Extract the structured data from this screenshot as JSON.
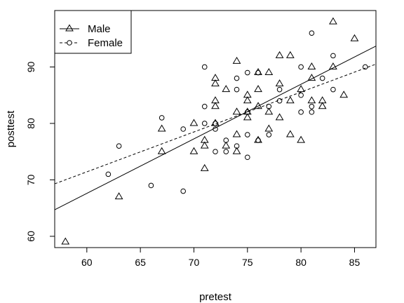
{
  "chart_data": {
    "type": "scatter",
    "xlabel": "pretest",
    "ylabel": "posttest",
    "xlim": [
      57,
      87
    ],
    "ylim": [
      58,
      100
    ],
    "x_ticks": [
      60,
      65,
      70,
      75,
      80,
      85
    ],
    "y_ticks": [
      60,
      70,
      80,
      90
    ],
    "grid": false,
    "legend_position": "top-left",
    "series": [
      {
        "name": "Male",
        "marker": "triangle",
        "line_style": "solid",
        "fit_line": {
          "x": [
            57,
            87
          ],
          "y": [
            64.7,
            93.7
          ]
        },
        "points": [
          [
            58,
            59
          ],
          [
            63,
            67
          ],
          [
            67,
            75
          ],
          [
            67,
            79
          ],
          [
            70,
            75
          ],
          [
            70,
            80
          ],
          [
            71,
            72
          ],
          [
            71,
            76
          ],
          [
            71,
            77
          ],
          [
            72,
            80
          ],
          [
            72,
            83
          ],
          [
            72,
            84
          ],
          [
            72,
            87
          ],
          [
            72,
            88
          ],
          [
            73,
            76
          ],
          [
            73,
            86
          ],
          [
            74,
            75
          ],
          [
            74,
            78
          ],
          [
            74,
            82
          ],
          [
            74,
            91
          ],
          [
            75,
            81
          ],
          [
            75,
            82
          ],
          [
            75,
            84
          ],
          [
            75,
            85
          ],
          [
            76,
            77
          ],
          [
            76,
            83
          ],
          [
            76,
            86
          ],
          [
            76,
            89
          ],
          [
            77,
            79
          ],
          [
            77,
            82
          ],
          [
            77,
            89
          ],
          [
            78,
            81
          ],
          [
            78,
            87
          ],
          [
            78,
            92
          ],
          [
            79,
            78
          ],
          [
            79,
            84
          ],
          [
            79,
            92
          ],
          [
            80,
            77
          ],
          [
            80,
            86
          ],
          [
            81,
            84
          ],
          [
            81,
            88
          ],
          [
            81,
            90
          ],
          [
            82,
            83
          ],
          [
            82,
            84
          ],
          [
            83,
            90
          ],
          [
            83,
            98
          ],
          [
            84,
            85
          ],
          [
            85,
            95
          ]
        ]
      },
      {
        "name": "Female",
        "marker": "circle",
        "line_style": "dashed",
        "fit_line": {
          "x": [
            57,
            87
          ],
          "y": [
            69.3,
            90.5
          ]
        },
        "points": [
          [
            62,
            71
          ],
          [
            63,
            76
          ],
          [
            66,
            69
          ],
          [
            67,
            81
          ],
          [
            69,
            68
          ],
          [
            69,
            79
          ],
          [
            71,
            80
          ],
          [
            71,
            83
          ],
          [
            71,
            90
          ],
          [
            72,
            75
          ],
          [
            72,
            79
          ],
          [
            72,
            80
          ],
          [
            73,
            75
          ],
          [
            73,
            77
          ],
          [
            74,
            76
          ],
          [
            74,
            86
          ],
          [
            74,
            88
          ],
          [
            75,
            74
          ],
          [
            75,
            78
          ],
          [
            75,
            82
          ],
          [
            75,
            89
          ],
          [
            76,
            77
          ],
          [
            76,
            89
          ],
          [
            77,
            78
          ],
          [
            77,
            83
          ],
          [
            78,
            84
          ],
          [
            78,
            86
          ],
          [
            80,
            82
          ],
          [
            80,
            85
          ],
          [
            80,
            90
          ],
          [
            81,
            82
          ],
          [
            81,
            83
          ],
          [
            81,
            96
          ],
          [
            82,
            88
          ],
          [
            83,
            86
          ],
          [
            83,
            92
          ],
          [
            86,
            90
          ]
        ]
      }
    ]
  }
}
